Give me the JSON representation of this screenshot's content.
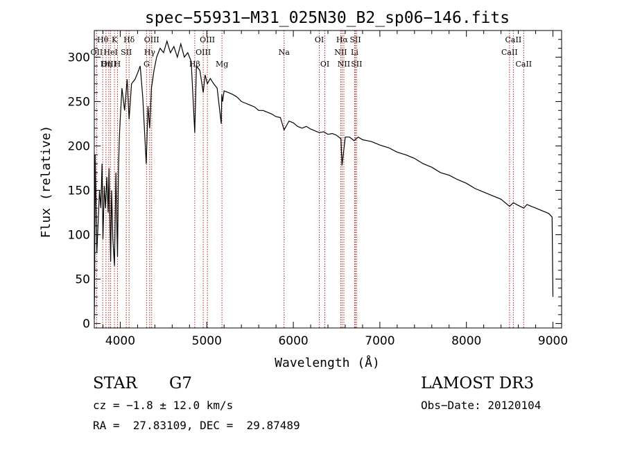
{
  "chart_data": {
    "type": "line",
    "title": "spec−55931−M31_025N30_B2_sp06−146.fits",
    "xlabel": "Wavelength (Å)",
    "ylabel": "Flux (relative)",
    "xlim": [
      3700,
      9100
    ],
    "ylim": [
      -5,
      330
    ],
    "xticks": [
      4000,
      5000,
      6000,
      7000,
      8000,
      9000
    ],
    "yticks": [
      0,
      50,
      100,
      150,
      200,
      250,
      300
    ],
    "grid": false,
    "series": [
      {
        "name": "flux",
        "x": [
          3700,
          3705,
          3710,
          3730,
          3760,
          3775,
          3790,
          3800,
          3815,
          3830,
          3845,
          3860,
          3870,
          3889,
          3900,
          3915,
          3933,
          3950,
          3968,
          3980,
          3990,
          4000,
          4020,
          4050,
          4080,
          4102,
          4130,
          4170,
          4200,
          4230,
          4260,
          4300,
          4320,
          4340,
          4360,
          4390,
          4420,
          4460,
          4500,
          4540,
          4580,
          4620,
          4660,
          4700,
          4740,
          4780,
          4820,
          4861,
          4880,
          4920,
          4959,
          4980,
          5007,
          5040,
          5080,
          5120,
          5167,
          5173,
          5183,
          5200,
          5250,
          5300,
          5350,
          5400,
          5450,
          5500,
          5550,
          5600,
          5650,
          5700,
          5750,
          5800,
          5850,
          5893,
          5950,
          6000,
          6050,
          6100,
          6150,
          6200,
          6250,
          6300,
          6350,
          6400,
          6450,
          6500,
          6550,
          6563,
          6600,
          6650,
          6700,
          6750,
          6800,
          6850,
          6900,
          6950,
          7000,
          7100,
          7200,
          7300,
          7400,
          7500,
          7600,
          7700,
          7800,
          7900,
          8000,
          8100,
          8200,
          8300,
          8400,
          8498,
          8542,
          8600,
          8662,
          8700,
          8750,
          8800,
          8850,
          8900,
          8950,
          8990,
          9000
        ],
        "y": [
          5,
          60,
          190,
          80,
          150,
          130,
          180,
          95,
          155,
          130,
          165,
          125,
          175,
          70,
          150,
          95,
          65,
          170,
          75,
          175,
          210,
          230,
          265,
          240,
          275,
          230,
          270,
          275,
          282,
          290,
          255,
          180,
          245,
          220,
          265,
          285,
          300,
          310,
          305,
          318,
          305,
          312,
          300,
          315,
          300,
          305,
          295,
          215,
          290,
          285,
          260,
          280,
          270,
          276,
          270,
          265,
          225,
          258,
          250,
          262,
          260,
          258,
          255,
          250,
          248,
          246,
          244,
          240,
          240,
          238,
          236,
          233,
          232,
          218,
          228,
          226,
          222,
          220,
          222,
          219,
          217,
          215,
          216,
          213,
          214,
          212,
          208,
          178,
          210,
          210,
          206,
          210,
          207,
          206,
          205,
          203,
          201,
          198,
          193,
          190,
          186,
          180,
          176,
          170,
          167,
          162,
          158,
          152,
          148,
          144,
          140,
          132,
          136,
          133,
          130,
          134,
          132,
          130,
          128,
          126,
          124,
          120,
          30
        ]
      }
    ],
    "lines": [
      {
        "label": "Hθ",
        "wavelength": 3797,
        "row": 0
      },
      {
        "label": "OII",
        "wavelength": 3727,
        "row": 1
      },
      {
        "label": "OIII",
        "wavelength": 3868,
        "row": 2
      },
      {
        "label": "Hη",
        "wavelength": 3835,
        "row": 2
      },
      {
        "label": "HeI",
        "wavelength": 3889,
        "row": 1
      },
      {
        "label": "K",
        "wavelength": 3933,
        "row": 0
      },
      {
        "label": "SII",
        "wavelength": 4070,
        "row": 1
      },
      {
        "label": "H",
        "wavelength": 3968,
        "row": 2
      },
      {
        "label": "Hδ",
        "wavelength": 4102,
        "row": 0
      },
      {
        "label": "OIII",
        "wavelength": 4363,
        "row": 0
      },
      {
        "label": "Hγ",
        "wavelength": 4340,
        "row": 1
      },
      {
        "label": "G",
        "wavelength": 4304,
        "row": 2
      },
      {
        "label": "OIII",
        "wavelength": 5007,
        "row": 0
      },
      {
        "label": "OIII",
        "wavelength": 4959,
        "row": 1
      },
      {
        "label": "Hβ",
        "wavelength": 4861,
        "row": 2
      },
      {
        "label": "Mg",
        "wavelength": 5175,
        "row": 2
      },
      {
        "label": "Na",
        "wavelength": 5893,
        "row": 1
      },
      {
        "label": "OI",
        "wavelength": 6300,
        "row": 0
      },
      {
        "label": "OI",
        "wavelength": 6364,
        "row": 2
      },
      {
        "label": "Hα",
        "wavelength": 6563,
        "row": 0
      },
      {
        "label": "NII",
        "wavelength": 6548,
        "row": 1
      },
      {
        "label": "NII",
        "wavelength": 6584,
        "row": 2
      },
      {
        "label": "SII",
        "wavelength": 6717,
        "row": 0
      },
      {
        "label": "Li",
        "wavelength": 6708,
        "row": 1
      },
      {
        "label": "SII",
        "wavelength": 6731,
        "row": 2
      },
      {
        "label": "CaII",
        "wavelength": 8542,
        "row": 0
      },
      {
        "label": "CaII",
        "wavelength": 8498,
        "row": 1
      },
      {
        "label": "CaII",
        "wavelength": 8662,
        "row": 2
      }
    ]
  },
  "info": {
    "class": "STAR",
    "subclass": "G7",
    "survey": "LAMOST DR3",
    "cz": "cz = −1.8 ± 12.0 km/s",
    "obs_date": "Obs−Date: 20120104",
    "radec": "RA =  27.83109, DEC =  29.87489"
  }
}
